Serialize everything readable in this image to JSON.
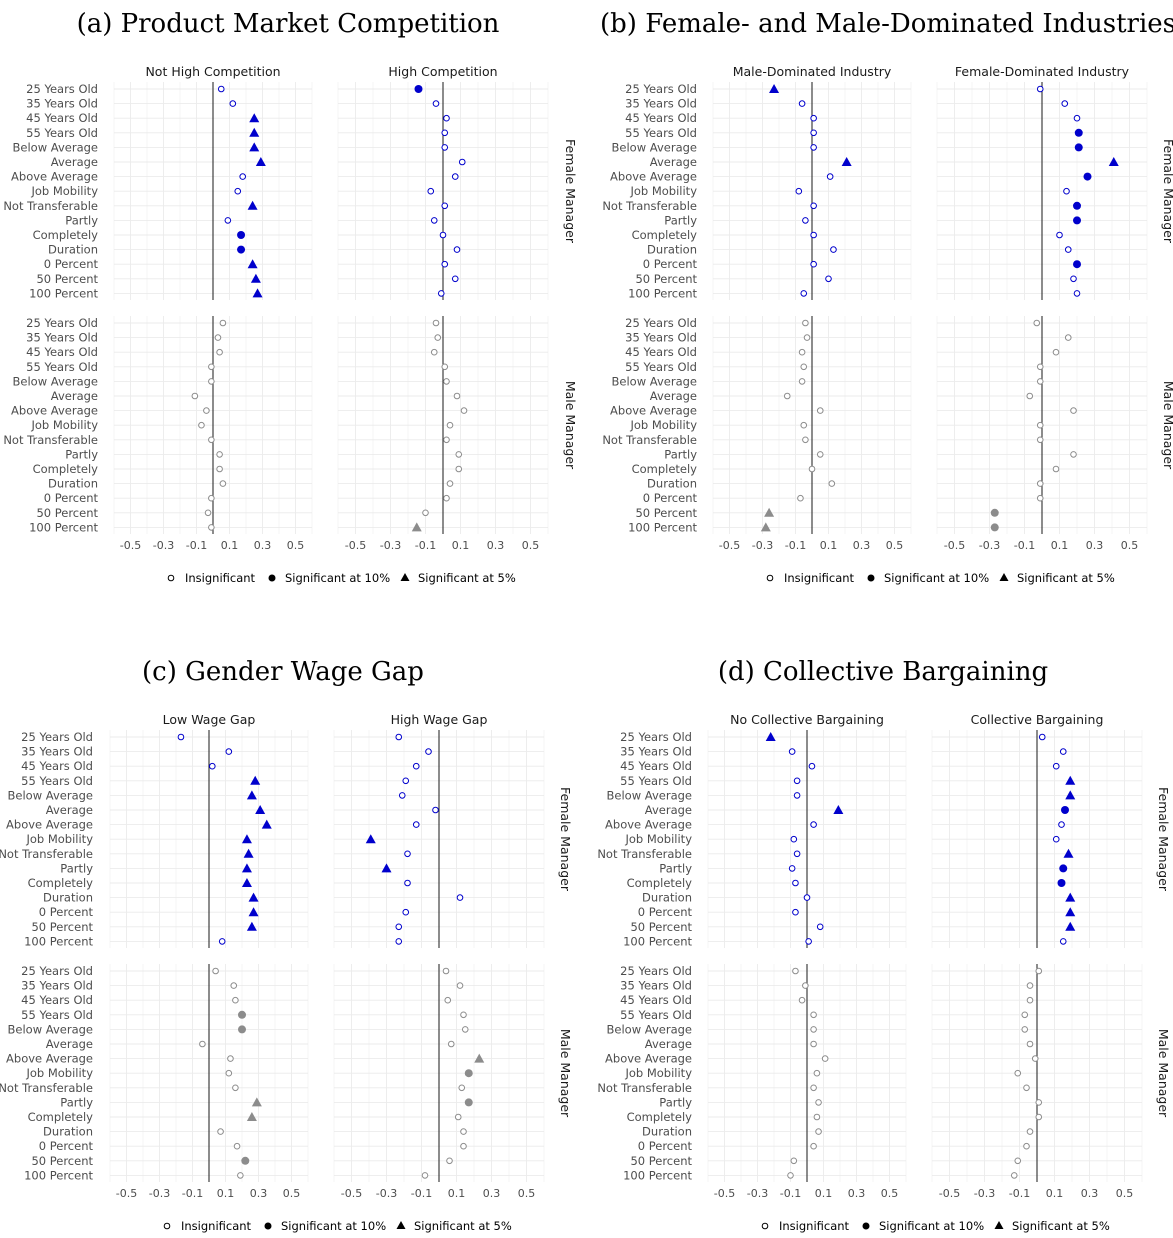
{
  "chart_data": [
    {
      "type": "scatter",
      "title": "(a) Product Market Competition",
      "columns": [
        "Not High Competition",
        "High Competition"
      ],
      "rows": [
        "Female Manager",
        "Male Manager"
      ],
      "categories": [
        "25 Years Old",
        "35 Years Old",
        "45 Years Old",
        "55 Years Old",
        "Below Average",
        "Average",
        "Above Average",
        "Job Mobility",
        "Not Transferable",
        "Partly",
        "Completely",
        "Duration",
        "0 Percent",
        "50 Percent",
        "100 Percent"
      ],
      "xlim": [
        -0.6,
        0.6
      ],
      "xticks": [
        "-0.5",
        "-0.3",
        "-0.1",
        "0.1",
        "0.3",
        "0.5"
      ],
      "panels": [
        {
          "column": "Not High Competition",
          "row": "Female Manager",
          "values": [
            0.05,
            0.12,
            0.25,
            0.25,
            0.25,
            0.29,
            0.18,
            0.15,
            0.24,
            0.09,
            0.17,
            0.17,
            0.24,
            0.26,
            0.27
          ],
          "significance": [
            "i",
            "i",
            "s5",
            "s5",
            "s5",
            "s5",
            "i",
            "i",
            "s5",
            "i",
            "s10",
            "s10",
            "s5",
            "s5",
            "s5"
          ]
        },
        {
          "column": "High Competition",
          "row": "Female Manager",
          "values": [
            -0.14,
            -0.04,
            0.02,
            0.01,
            0.01,
            0.11,
            0.07,
            -0.07,
            0.01,
            -0.05,
            0.0,
            0.08,
            0.01,
            0.07,
            -0.01
          ],
          "significance": [
            "s10",
            "i",
            "i",
            "i",
            "i",
            "i",
            "i",
            "i",
            "i",
            "i",
            "i",
            "i",
            "i",
            "i",
            "i"
          ]
        },
        {
          "column": "Not High Competition",
          "row": "Male Manager",
          "values": [
            0.06,
            0.03,
            0.04,
            -0.01,
            -0.01,
            -0.11,
            -0.04,
            -0.07,
            -0.01,
            0.04,
            0.04,
            0.06,
            -0.01,
            -0.03,
            -0.01
          ],
          "significance": [
            "i",
            "i",
            "i",
            "i",
            "i",
            "i",
            "i",
            "i",
            "i",
            "i",
            "i",
            "i",
            "i",
            "i",
            "i"
          ]
        },
        {
          "column": "High Competition",
          "row": "Male Manager",
          "values": [
            -0.04,
            -0.03,
            -0.05,
            0.01,
            0.02,
            0.08,
            0.12,
            0.04,
            0.02,
            0.09,
            0.09,
            0.04,
            0.02,
            -0.1,
            -0.15
          ],
          "significance": [
            "i",
            "i",
            "i",
            "i",
            "i",
            "i",
            "i",
            "i",
            "i",
            "i",
            "i",
            "i",
            "i",
            "i",
            "s5"
          ]
        }
      ]
    },
    {
      "type": "scatter",
      "title": "(b) Female- and Male-Dominated Industries",
      "columns": [
        "Male-Dominated Industry",
        "Female-Dominated Industry"
      ],
      "rows": [
        "Female Manager",
        "Male Manager"
      ],
      "categories": [
        "25 Years Old",
        "35 Years Old",
        "45 Years Old",
        "55 Years Old",
        "Below Average",
        "Average",
        "Above Average",
        "Job Mobility",
        "Not Transferable",
        "Partly",
        "Completely",
        "Duration",
        "0 Percent",
        "50 Percent",
        "100 Percent"
      ],
      "xlim": [
        -0.6,
        0.6
      ],
      "xticks": [
        "-0.5",
        "-0.3",
        "-0.1",
        "0.1",
        "0.3",
        "0.5"
      ],
      "panels": [
        {
          "column": "Male-Dominated Industry",
          "row": "Female Manager",
          "values": [
            -0.23,
            -0.06,
            0.01,
            0.01,
            0.01,
            0.21,
            0.11,
            -0.08,
            0.01,
            -0.04,
            0.01,
            0.13,
            0.01,
            0.1,
            -0.05
          ],
          "significance": [
            "s5",
            "i",
            "i",
            "i",
            "i",
            "s5",
            "i",
            "i",
            "i",
            "i",
            "i",
            "i",
            "i",
            "i",
            "i"
          ]
        },
        {
          "column": "Female-Dominated Industry",
          "row": "Female Manager",
          "values": [
            -0.01,
            0.13,
            0.2,
            0.21,
            0.21,
            0.41,
            0.26,
            0.14,
            0.2,
            0.2,
            0.1,
            0.15,
            0.2,
            0.18,
            0.2
          ],
          "significance": [
            "i",
            "i",
            "i",
            "s10",
            "s10",
            "s5",
            "s10",
            "i",
            "s10",
            "s10",
            "i",
            "i",
            "s10",
            "i",
            "i"
          ]
        },
        {
          "column": "Male-Dominated Industry",
          "row": "Male Manager",
          "values": [
            -0.04,
            -0.03,
            -0.06,
            -0.05,
            -0.06,
            -0.15,
            0.05,
            -0.05,
            -0.04,
            0.05,
            0.0,
            0.12,
            -0.07,
            -0.26,
            -0.28
          ],
          "significance": [
            "i",
            "i",
            "i",
            "i",
            "i",
            "i",
            "i",
            "i",
            "i",
            "i",
            "i",
            "i",
            "i",
            "s5",
            "s5"
          ]
        },
        {
          "column": "Female-Dominated Industry",
          "row": "Male Manager",
          "values": [
            -0.03,
            0.15,
            0.08,
            -0.01,
            -0.01,
            -0.07,
            0.18,
            -0.01,
            -0.01,
            0.18,
            0.08,
            -0.01,
            -0.01,
            -0.27,
            -0.27
          ],
          "significance": [
            "i",
            "i",
            "i",
            "i",
            "i",
            "i",
            "i",
            "i",
            "i",
            "i",
            "i",
            "i",
            "i",
            "s10",
            "s10"
          ]
        }
      ]
    },
    {
      "type": "scatter",
      "title": "(c) Gender Wage Gap",
      "columns": [
        "Low Wage Gap",
        "High Wage Gap"
      ],
      "rows": [
        "Female Manager",
        "Male Manager"
      ],
      "categories": [
        "25 Years Old",
        "35 Years Old",
        "45 Years Old",
        "55 Years Old",
        "Below Average",
        "Average",
        "Above Average",
        "Job Mobility",
        "Not Transferable",
        "Partly",
        "Completely",
        "Duration",
        "0 Percent",
        "50 Percent",
        "100 Percent"
      ],
      "xlim": [
        -0.6,
        0.6
      ],
      "xticks": [
        "-0.5",
        "-0.3",
        "-0.1",
        "0.1",
        "0.3",
        "0.5"
      ],
      "panels": [
        {
          "column": "Low Wage Gap",
          "row": "Female Manager",
          "values": [
            -0.17,
            0.12,
            0.02,
            0.28,
            0.26,
            0.31,
            0.35,
            0.23,
            0.24,
            0.23,
            0.23,
            0.27,
            0.27,
            0.26,
            0.08
          ],
          "significance": [
            "i",
            "i",
            "i",
            "s5",
            "s5",
            "s5",
            "s5",
            "s5",
            "s5",
            "s5",
            "s5",
            "s5",
            "s5",
            "s5",
            "i"
          ]
        },
        {
          "column": "High Wage Gap",
          "row": "Female Manager",
          "values": [
            -0.23,
            -0.06,
            -0.13,
            -0.19,
            -0.21,
            -0.02,
            -0.13,
            -0.39,
            -0.18,
            -0.3,
            -0.18,
            0.12,
            -0.19,
            -0.23,
            -0.23
          ],
          "significance": [
            "i",
            "i",
            "i",
            "i",
            "i",
            "i",
            "i",
            "s5",
            "i",
            "s5",
            "i",
            "i",
            "i",
            "i",
            "i"
          ]
        },
        {
          "column": "Low Wage Gap",
          "row": "Male Manager",
          "values": [
            0.04,
            0.15,
            0.16,
            0.2,
            0.2,
            -0.04,
            0.13,
            0.12,
            0.16,
            0.29,
            0.26,
            0.07,
            0.17,
            0.22,
            0.19
          ],
          "significance": [
            "i",
            "i",
            "i",
            "s10",
            "s10",
            "i",
            "i",
            "i",
            "i",
            "s5",
            "s5",
            "i",
            "i",
            "s10",
            "i"
          ]
        },
        {
          "column": "High Wage Gap",
          "row": "Male Manager",
          "values": [
            0.04,
            0.12,
            0.05,
            0.14,
            0.15,
            0.07,
            0.23,
            0.17,
            0.13,
            0.17,
            0.11,
            0.14,
            0.14,
            0.06,
            -0.08
          ],
          "significance": [
            "i",
            "i",
            "i",
            "i",
            "i",
            "i",
            "s5",
            "s10",
            "i",
            "s10",
            "i",
            "i",
            "i",
            "i",
            "i"
          ]
        }
      ]
    },
    {
      "type": "scatter",
      "title": "(d) Collective Bargaining",
      "columns": [
        "No Collective Bargaining",
        "Collective Bargaining"
      ],
      "rows": [
        "Female Manager",
        "Male Manager"
      ],
      "categories": [
        "25 Years Old",
        "35 Years Old",
        "45 Years Old",
        "55 Years Old",
        "Below Average",
        "Average",
        "Above Average",
        "Job Mobility",
        "Not Transferable",
        "Partly",
        "Completely",
        "Duration",
        "0 Percent",
        "50 Percent",
        "100 Percent"
      ],
      "xlim": [
        -0.6,
        0.6
      ],
      "xticks": [
        "-0.5",
        "-0.3",
        "-0.1",
        "0.1",
        "0.3",
        "0.5"
      ],
      "panels": [
        {
          "column": "No Collective Bargaining",
          "row": "Female Manager",
          "values": [
            -0.22,
            -0.09,
            0.03,
            -0.06,
            -0.06,
            0.19,
            0.04,
            -0.08,
            -0.06,
            -0.09,
            -0.07,
            0.0,
            -0.07,
            0.08,
            0.01
          ],
          "significance": [
            "s5",
            "i",
            "i",
            "i",
            "i",
            "s5",
            "i",
            "i",
            "i",
            "i",
            "i",
            "i",
            "i",
            "i",
            "i"
          ]
        },
        {
          "column": "Collective Bargaining",
          "row": "Female Manager",
          "values": [
            0.03,
            0.15,
            0.11,
            0.19,
            0.19,
            0.16,
            0.14,
            0.11,
            0.18,
            0.15,
            0.14,
            0.19,
            0.19,
            0.19,
            0.15
          ],
          "significance": [
            "i",
            "i",
            "i",
            "s5",
            "s5",
            "s10",
            "i",
            "i",
            "s5",
            "s10",
            "s10",
            "s5",
            "s5",
            "s5",
            "i"
          ]
        },
        {
          "column": "No Collective Bargaining",
          "row": "Male Manager",
          "values": [
            -0.07,
            -0.01,
            -0.03,
            0.04,
            0.04,
            0.04,
            0.11,
            0.06,
            0.04,
            0.07,
            0.06,
            0.07,
            0.04,
            -0.08,
            -0.1
          ],
          "significance": [
            "i",
            "i",
            "i",
            "i",
            "i",
            "i",
            "i",
            "i",
            "i",
            "i",
            "i",
            "i",
            "i",
            "i",
            "i"
          ]
        },
        {
          "column": "Collective Bargaining",
          "row": "Male Manager",
          "values": [
            0.01,
            -0.04,
            -0.04,
            -0.07,
            -0.07,
            -0.04,
            -0.01,
            -0.11,
            -0.06,
            0.01,
            0.01,
            -0.04,
            -0.06,
            -0.11,
            -0.13
          ],
          "significance": [
            "i",
            "i",
            "i",
            "i",
            "i",
            "i",
            "i",
            "i",
            "i",
            "i",
            "i",
            "i",
            "i",
            "i",
            "i"
          ]
        }
      ]
    }
  ],
  "legend": {
    "insignificant": "Insignificant",
    "sig10": "Significant at 10%",
    "sig5": "Significant at 5%"
  },
  "colors": {
    "female": "#0000cc",
    "male": "#8c8c8c",
    "grid": "#ebebeb",
    "zero_line": "#1a1a1a"
  }
}
